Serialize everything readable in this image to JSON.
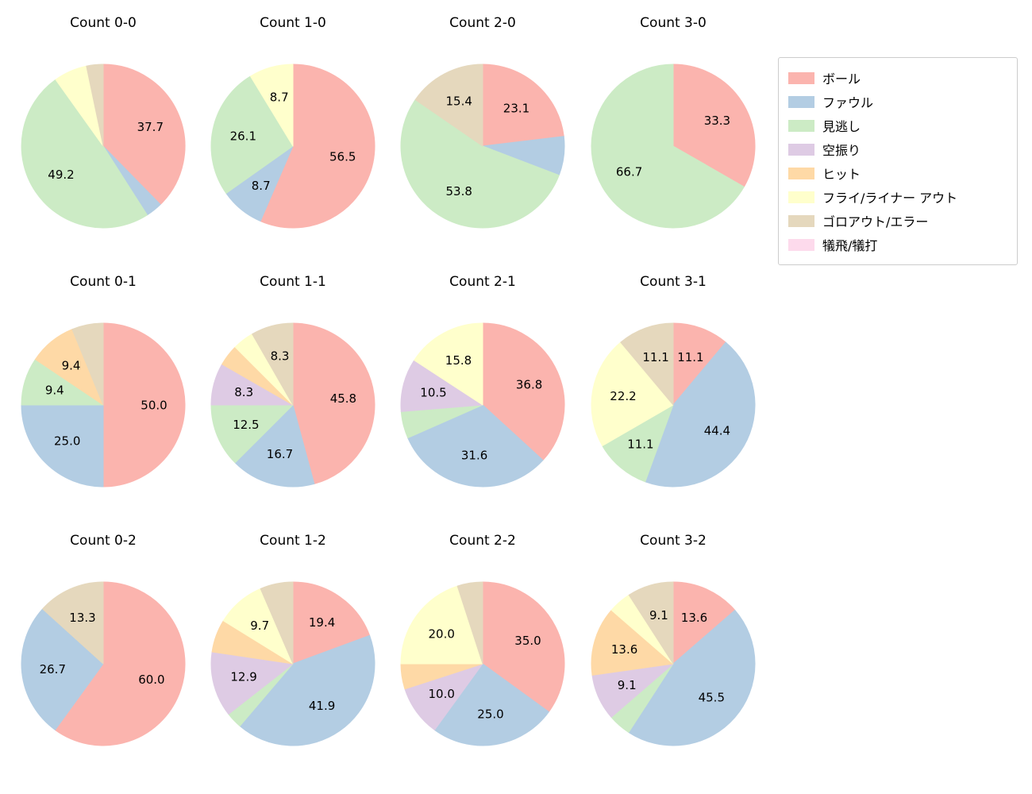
{
  "figure": {
    "background": "#ffffff",
    "text_color": "#000000"
  },
  "legend": {
    "position": "upper right",
    "items": [
      {
        "key": "ball",
        "label": "ボール",
        "color": "#fbb4ae"
      },
      {
        "key": "foul",
        "label": "ファウル",
        "color": "#b3cde3"
      },
      {
        "key": "called-strike",
        "label": "見逃し",
        "color": "#ccebc5"
      },
      {
        "key": "swinging-strike",
        "label": "空振り",
        "color": "#decbe4"
      },
      {
        "key": "hit",
        "label": "ヒット",
        "color": "#fed9a6"
      },
      {
        "key": "fly-liner-out",
        "label": "フライ/ライナー アウト",
        "color": "#ffffcc"
      },
      {
        "key": "groundout-error",
        "label": "ゴロアウト/エラー",
        "color": "#e5d8bd"
      },
      {
        "key": "sacrifice",
        "label": "犠飛/犠打",
        "color": "#fddaec"
      }
    ]
  },
  "chart_data": [
    {
      "type": "pie",
      "title": "Count 0-0",
      "slices": [
        {
          "key": "ball",
          "category": "ボール",
          "value": 37.7,
          "label": "37.7"
        },
        {
          "key": "foul",
          "category": "ファウル",
          "value": 3.3,
          "label": ""
        },
        {
          "key": "called-strike",
          "category": "見逃し",
          "value": 49.2,
          "label": "49.2"
        },
        {
          "key": "fly-liner-out",
          "category": "フライ/ライナー アウト",
          "value": 6.6,
          "label": ""
        },
        {
          "key": "groundout-error",
          "category": "ゴロアウト/エラー",
          "value": 3.3,
          "label": ""
        }
      ]
    },
    {
      "type": "pie",
      "title": "Count 1-0",
      "slices": [
        {
          "key": "ball",
          "category": "ボール",
          "value": 56.5,
          "label": "56.5"
        },
        {
          "key": "foul",
          "category": "ファウル",
          "value": 8.7,
          "label": "8.7"
        },
        {
          "key": "called-strike",
          "category": "見逃し",
          "value": 26.1,
          "label": "26.1"
        },
        {
          "key": "fly-liner-out",
          "category": "フライ/ライナー アウト",
          "value": 8.7,
          "label": "8.7"
        }
      ]
    },
    {
      "type": "pie",
      "title": "Count 2-0",
      "slices": [
        {
          "key": "ball",
          "category": "ボール",
          "value": 23.1,
          "label": "23.1"
        },
        {
          "key": "foul",
          "category": "ファウル",
          "value": 7.7,
          "label": ""
        },
        {
          "key": "called-strike",
          "category": "見逃し",
          "value": 53.8,
          "label": "53.8"
        },
        {
          "key": "groundout-error",
          "category": "ゴロアウト/エラー",
          "value": 15.4,
          "label": "15.4"
        }
      ]
    },
    {
      "type": "pie",
      "title": "Count 3-0",
      "slices": [
        {
          "key": "ball",
          "category": "ボール",
          "value": 33.3,
          "label": "33.3"
        },
        {
          "key": "called-strike",
          "category": "見逃し",
          "value": 66.7,
          "label": "66.7"
        }
      ]
    },
    {
      "type": "pie",
      "title": "Count 0-1",
      "slices": [
        {
          "key": "ball",
          "category": "ボール",
          "value": 50.0,
          "label": "50.0"
        },
        {
          "key": "foul",
          "category": "ファウル",
          "value": 25.0,
          "label": "25.0"
        },
        {
          "key": "called-strike",
          "category": "見逃し",
          "value": 9.4,
          "label": "9.4"
        },
        {
          "key": "hit",
          "category": "ヒット",
          "value": 9.4,
          "label": "9.4"
        },
        {
          "key": "groundout-error",
          "category": "ゴロアウト/エラー",
          "value": 6.2,
          "label": ""
        }
      ]
    },
    {
      "type": "pie",
      "title": "Count 1-1",
      "slices": [
        {
          "key": "ball",
          "category": "ボール",
          "value": 45.8,
          "label": "45.8"
        },
        {
          "key": "foul",
          "category": "ファウル",
          "value": 16.7,
          "label": "16.7"
        },
        {
          "key": "called-strike",
          "category": "見逃し",
          "value": 12.5,
          "label": "12.5"
        },
        {
          "key": "swinging-strike",
          "category": "空振り",
          "value": 8.3,
          "label": "8.3"
        },
        {
          "key": "hit",
          "category": "ヒット",
          "value": 4.2,
          "label": ""
        },
        {
          "key": "fly-liner-out",
          "category": "フライ/ライナー アウト",
          "value": 4.2,
          "label": ""
        },
        {
          "key": "groundout-error",
          "category": "ゴロアウト/エラー",
          "value": 8.3,
          "label": "8.3"
        }
      ]
    },
    {
      "type": "pie",
      "title": "Count 2-1",
      "slices": [
        {
          "key": "ball",
          "category": "ボール",
          "value": 36.8,
          "label": "36.8"
        },
        {
          "key": "foul",
          "category": "ファウル",
          "value": 31.6,
          "label": "31.6"
        },
        {
          "key": "called-strike",
          "category": "見逃し",
          "value": 5.3,
          "label": ""
        },
        {
          "key": "swinging-strike",
          "category": "空振り",
          "value": 10.5,
          "label": "10.5"
        },
        {
          "key": "fly-liner-out",
          "category": "フライ/ライナー アウト",
          "value": 15.8,
          "label": "15.8"
        }
      ]
    },
    {
      "type": "pie",
      "title": "Count 3-1",
      "slices": [
        {
          "key": "ball",
          "category": "ボール",
          "value": 11.1,
          "label": "11.1"
        },
        {
          "key": "foul",
          "category": "ファウル",
          "value": 44.4,
          "label": "44.4"
        },
        {
          "key": "called-strike",
          "category": "見逃し",
          "value": 11.1,
          "label": "11.1"
        },
        {
          "key": "fly-liner-out",
          "category": "フライ/ライナー アウト",
          "value": 22.2,
          "label": "22.2"
        },
        {
          "key": "groundout-error",
          "category": "ゴロアウト/エラー",
          "value": 11.1,
          "label": "11.1"
        }
      ]
    },
    {
      "type": "pie",
      "title": "Count 0-2",
      "slices": [
        {
          "key": "ball",
          "category": "ボール",
          "value": 60.0,
          "label": "60.0"
        },
        {
          "key": "foul",
          "category": "ファウル",
          "value": 26.7,
          "label": "26.7"
        },
        {
          "key": "groundout-error",
          "category": "ゴロアウト/エラー",
          "value": 13.3,
          "label": "13.3"
        }
      ]
    },
    {
      "type": "pie",
      "title": "Count 1-2",
      "slices": [
        {
          "key": "ball",
          "category": "ボール",
          "value": 19.4,
          "label": "19.4"
        },
        {
          "key": "foul",
          "category": "ファウル",
          "value": 41.9,
          "label": "41.9"
        },
        {
          "key": "called-strike",
          "category": "見逃し",
          "value": 3.2,
          "label": ""
        },
        {
          "key": "swinging-strike",
          "category": "空振り",
          "value": 12.9,
          "label": "12.9"
        },
        {
          "key": "hit",
          "category": "ヒット",
          "value": 6.5,
          "label": ""
        },
        {
          "key": "fly-liner-out",
          "category": "フライ/ライナー アウト",
          "value": 9.7,
          "label": "9.7"
        },
        {
          "key": "groundout-error",
          "category": "ゴロアウト/エラー",
          "value": 6.5,
          "label": ""
        }
      ]
    },
    {
      "type": "pie",
      "title": "Count 2-2",
      "slices": [
        {
          "key": "ball",
          "category": "ボール",
          "value": 35.0,
          "label": "35.0"
        },
        {
          "key": "foul",
          "category": "ファウル",
          "value": 25.0,
          "label": "25.0"
        },
        {
          "key": "swinging-strike",
          "category": "空振り",
          "value": 10.0,
          "label": "10.0"
        },
        {
          "key": "hit",
          "category": "ヒット",
          "value": 5.0,
          "label": ""
        },
        {
          "key": "fly-liner-out",
          "category": "フライ/ライナー アウト",
          "value": 20.0,
          "label": "20.0"
        },
        {
          "key": "groundout-error",
          "category": "ゴロアウト/エラー",
          "value": 5.0,
          "label": ""
        }
      ]
    },
    {
      "type": "pie",
      "title": "Count 3-2",
      "slices": [
        {
          "key": "ball",
          "category": "ボール",
          "value": 13.6,
          "label": "13.6"
        },
        {
          "key": "foul",
          "category": "ファウル",
          "value": 45.5,
          "label": "45.5"
        },
        {
          "key": "called-strike",
          "category": "見逃し",
          "value": 4.5,
          "label": ""
        },
        {
          "key": "swinging-strike",
          "category": "空振り",
          "value": 9.1,
          "label": "9.1"
        },
        {
          "key": "hit",
          "category": "ヒット",
          "value": 13.6,
          "label": "13.6"
        },
        {
          "key": "fly-liner-out",
          "category": "フライ/ライナー アウト",
          "value": 4.5,
          "label": ""
        },
        {
          "key": "groundout-error",
          "category": "ゴロアウト/エラー",
          "value": 9.1,
          "label": "9.1"
        }
      ]
    }
  ]
}
